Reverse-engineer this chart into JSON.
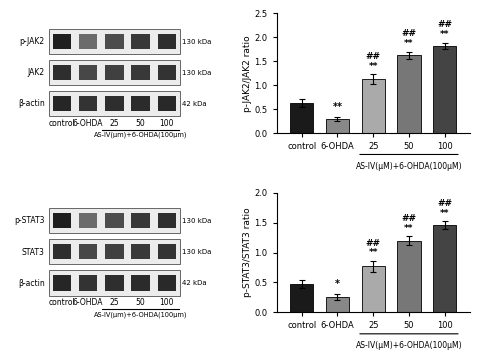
{
  "jak2_bars": [
    0.62,
    0.3,
    1.13,
    1.62,
    1.82
  ],
  "jak2_errors": [
    0.08,
    0.04,
    0.1,
    0.08,
    0.07
  ],
  "stat3_bars": [
    0.47,
    0.26,
    0.77,
    1.2,
    1.46
  ],
  "stat3_errors": [
    0.07,
    0.05,
    0.09,
    0.07,
    0.06
  ],
  "bar_colors": [
    "#1a1a1a",
    "#888888",
    "#aaaaaa",
    "#777777",
    "#444444"
  ],
  "categories": [
    "control",
    "6-OHDA",
    "25",
    "50",
    "100"
  ],
  "jak2_ylabel": "p-JAK2/JAK2 ratio",
  "stat3_ylabel": "p-STAT3/STAT3 ratio",
  "jak2_ylim": [
    0,
    2.5
  ],
  "stat3_ylim": [
    0,
    2.0
  ],
  "jak2_yticks": [
    0.0,
    0.5,
    1.0,
    1.5,
    2.0,
    2.5
  ],
  "stat3_yticks": [
    0.0,
    0.5,
    1.0,
    1.5,
    2.0
  ],
  "xlabel_sub": "AS-IV(μM)+6-OHDA(100μM)",
  "wb_xlabel_sub": "AS-IV(μm)+6-OHDA(100μm)",
  "background": "#ffffff",
  "wb_row_labels_jak2": [
    "p-JAK2",
    "JAK2",
    "β-actin"
  ],
  "wb_row_labels_stat3": [
    "p-STAT3",
    "STAT3",
    "β-actin"
  ],
  "wb_kda_labels": [
    "130 kDa",
    "130 kDa",
    "42 kDa"
  ],
  "wb_x_labels": [
    "control",
    "6-OHDA",
    "25",
    "50",
    "100"
  ],
  "jak2_sig_asiv": [
    "##\n**",
    "##\n**",
    "##\n**"
  ],
  "jak2_sig_6ohda": "**",
  "stat3_sig_asiv": [
    "##\n**",
    "##\n**",
    "##\n**"
  ],
  "stat3_sig_6ohda": "*"
}
